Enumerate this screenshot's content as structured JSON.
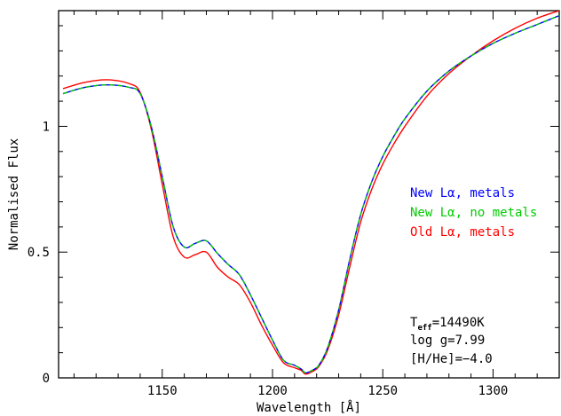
{
  "chart_data": {
    "type": "line",
    "title": "",
    "xlabel": "Wavelength [Å]",
    "ylabel": "Normalised Flux",
    "xlim": [
      1103,
      1330
    ],
    "ylim": [
      0,
      1.46
    ],
    "x_ticks": [
      1150,
      1200,
      1250,
      1300
    ],
    "y_ticks": [
      0,
      0.5,
      1
    ],
    "x_tick_labels": [
      "1150",
      "1200",
      "1250",
      "1300"
    ],
    "y_tick_labels": [
      "0",
      "0.5",
      "1"
    ],
    "grid": false,
    "legend_position": "right",
    "series": [
      {
        "name": "New Lα, metals",
        "color": "#0000ff",
        "x": [
          1105,
          1115,
          1125,
          1135,
          1140,
          1145,
          1150,
          1155,
          1160,
          1165,
          1170,
          1175,
          1180,
          1185,
          1190,
          1195,
          1200,
          1205,
          1210,
          1213,
          1215,
          1218,
          1221,
          1225,
          1230,
          1235,
          1240,
          1245,
          1250,
          1255,
          1260,
          1270,
          1280,
          1290,
          1300,
          1310,
          1320,
          1330
        ],
        "y": [
          1.13,
          1.155,
          1.165,
          1.155,
          1.13,
          1.0,
          0.8,
          0.6,
          0.52,
          0.535,
          0.545,
          0.495,
          0.45,
          0.41,
          0.33,
          0.24,
          0.15,
          0.07,
          0.05,
          0.035,
          0.02,
          0.03,
          0.05,
          0.12,
          0.27,
          0.47,
          0.65,
          0.78,
          0.88,
          0.96,
          1.03,
          1.14,
          1.22,
          1.28,
          1.33,
          1.37,
          1.405,
          1.44
        ]
      },
      {
        "name": "New Lα, no metals",
        "color": "#00cc00",
        "x": [
          1105,
          1115,
          1125,
          1135,
          1140,
          1145,
          1150,
          1155,
          1160,
          1165,
          1170,
          1175,
          1180,
          1185,
          1190,
          1195,
          1200,
          1205,
          1210,
          1213,
          1215,
          1218,
          1221,
          1225,
          1230,
          1235,
          1240,
          1245,
          1250,
          1255,
          1260,
          1270,
          1280,
          1290,
          1300,
          1310,
          1320,
          1330
        ],
        "y": [
          1.13,
          1.155,
          1.165,
          1.155,
          1.13,
          1.0,
          0.8,
          0.6,
          0.52,
          0.535,
          0.545,
          0.495,
          0.45,
          0.41,
          0.33,
          0.24,
          0.15,
          0.07,
          0.05,
          0.035,
          0.02,
          0.03,
          0.05,
          0.12,
          0.27,
          0.47,
          0.65,
          0.78,
          0.88,
          0.96,
          1.03,
          1.14,
          1.22,
          1.28,
          1.33,
          1.37,
          1.405,
          1.44
        ]
      },
      {
        "name": "Old Lα, metals",
        "color": "#ff0000",
        "x": [
          1105,
          1115,
          1125,
          1135,
          1140,
          1145,
          1150,
          1155,
          1160,
          1165,
          1170,
          1175,
          1180,
          1185,
          1190,
          1195,
          1200,
          1205,
          1210,
          1213,
          1215,
          1218,
          1221,
          1225,
          1230,
          1235,
          1240,
          1245,
          1250,
          1255,
          1260,
          1270,
          1280,
          1290,
          1300,
          1310,
          1320,
          1330
        ],
        "y": [
          1.15,
          1.175,
          1.185,
          1.17,
          1.135,
          0.99,
          0.77,
          0.56,
          0.48,
          0.49,
          0.5,
          0.44,
          0.4,
          0.37,
          0.3,
          0.21,
          0.13,
          0.06,
          0.04,
          0.03,
          0.015,
          0.025,
          0.045,
          0.11,
          0.25,
          0.44,
          0.62,
          0.75,
          0.85,
          0.93,
          1.0,
          1.12,
          1.21,
          1.28,
          1.34,
          1.39,
          1.43,
          1.46
        ]
      }
    ],
    "annotations": [
      {
        "text": "T",
        "sub": "eff",
        "rest": "=14490K"
      },
      {
        "text": "log g=7.99"
      },
      {
        "text": "[H/He]=−4.0"
      }
    ]
  }
}
